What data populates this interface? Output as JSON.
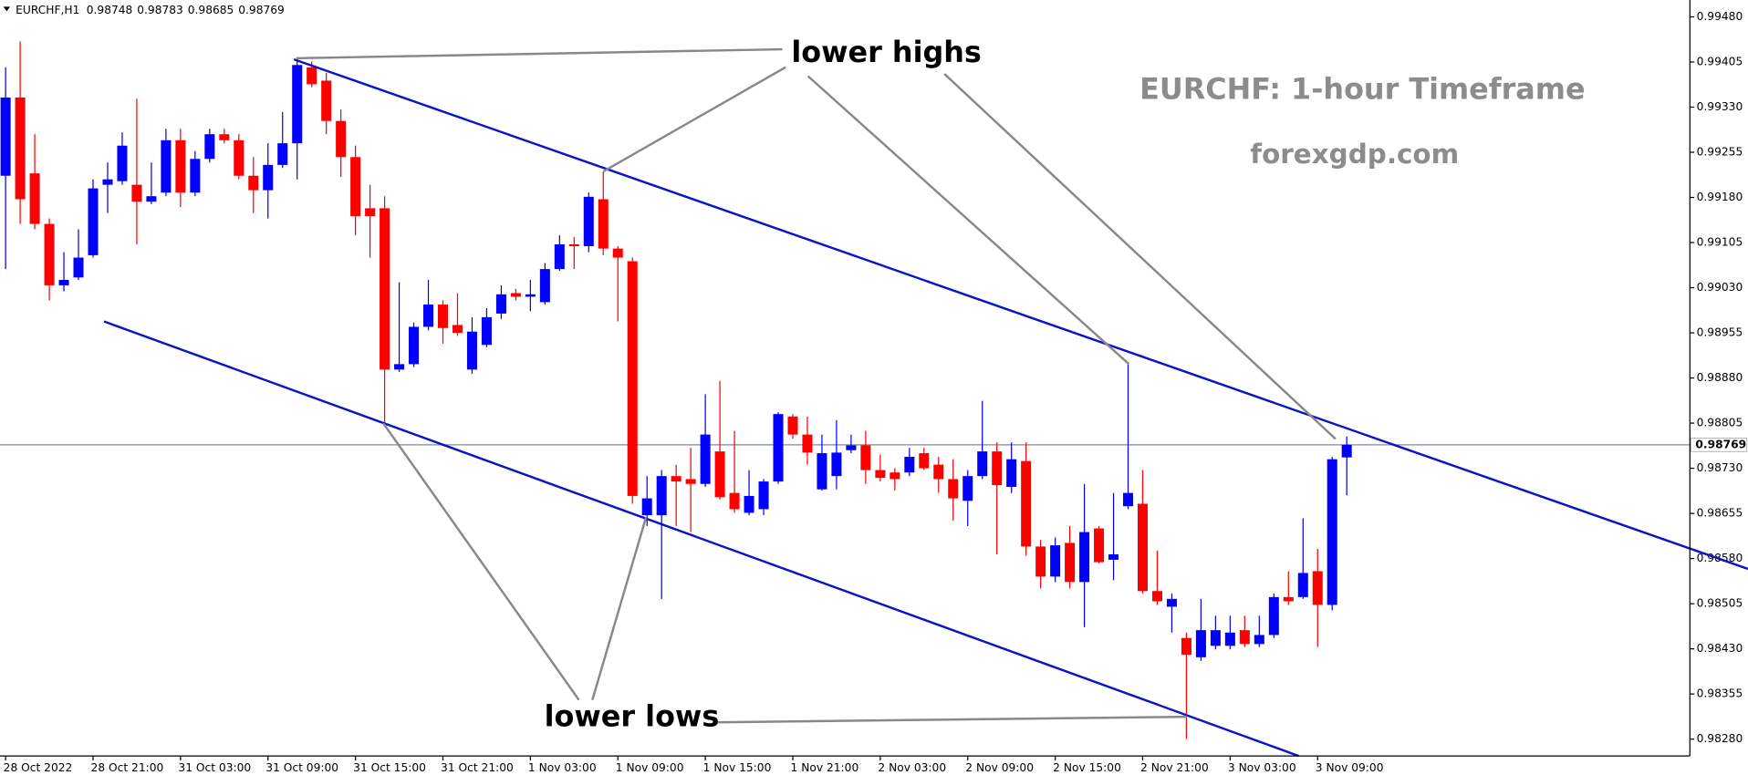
{
  "chart_data": {
    "type": "candlestick",
    "symbol": "EURCHF,H1",
    "title": "EURCHF: 1-hour Timeframe",
    "subtitle": "forexgdp.com",
    "annotations": [
      "lower highs",
      "lower lows"
    ],
    "up_color": "#0000ff",
    "down_color": "#ff0000",
    "categories": [
      "28 Oct 2022",
      null,
      null,
      null,
      null,
      null,
      "28 Oct 21:00",
      null,
      null,
      null,
      null,
      null,
      "31 Oct 03:00",
      null,
      null,
      null,
      null,
      null,
      "31 Oct 09:00",
      null,
      null,
      null,
      null,
      null,
      "31 Oct 15:00",
      null,
      null,
      null,
      null,
      null,
      "31 Oct 21:00",
      null,
      null,
      null,
      null,
      null,
      "1 Nov 03:00",
      null,
      null,
      null,
      null,
      null,
      "1 Nov 09:00",
      null,
      null,
      null,
      null,
      null,
      "1 Nov 15:00",
      null,
      null,
      null,
      null,
      null,
      "1 Nov 21:00",
      null,
      null,
      null,
      null,
      null,
      "2 Nov 03:00",
      null,
      null,
      null,
      null,
      null,
      "2 Nov 09:00",
      null,
      null,
      null,
      null,
      null,
      "2 Nov 15:00",
      null,
      null,
      null,
      null,
      null,
      "2 Nov 21:00",
      null,
      null,
      null,
      null,
      null,
      "3 Nov 03:00",
      null,
      null,
      null,
      null,
      null,
      "3 Nov 09:00",
      null,
      null
    ],
    "open": [
      0.99216,
      0.99346,
      0.9922,
      0.99136,
      0.99034,
      0.99047,
      0.99084,
      0.99201,
      0.99207,
      0.99201,
      0.99173,
      0.99188,
      0.99275,
      0.99188,
      0.99244,
      0.99285,
      0.99275,
      0.99216,
      0.99192,
      0.99234,
      0.9927,
      0.99396,
      0.99374,
      0.99307,
      0.99247,
      0.99162,
      0.99162,
      0.98894,
      0.98903,
      0.98965,
      0.99002,
      0.98968,
      0.98894,
      0.98935,
      0.98987,
      0.99021,
      0.99015,
      0.99006,
      0.99061,
      0.99102,
      0.99099,
      0.99177,
      0.99095,
      0.99074,
      0.98652,
      0.98652,
      0.98717,
      0.98712,
      0.98704,
      0.98758,
      0.98689,
      0.98656,
      0.98662,
      0.98708,
      0.98816,
      0.98786,
      0.98695,
      0.98717,
      0.9876,
      0.98768,
      0.98727,
      0.98723,
      0.98723,
      0.98755,
      0.98736,
      0.98712,
      0.98676,
      0.98717,
      0.98758,
      0.98699,
      0.98742,
      0.986,
      0.9855,
      0.98606,
      0.98541,
      0.9863,
      0.98578,
      0.98667,
      0.98671,
      0.98526,
      0.985,
      0.98448,
      0.98416,
      0.98435,
      0.98435,
      0.98461,
      0.98438,
      0.98453,
      0.98516,
      0.98516,
      0.98559,
      0.98503,
      0.98748
    ],
    "high": [
      0.99396,
      0.99439,
      0.99285,
      0.99145,
      0.99089,
      0.99127,
      0.9921,
      0.99238,
      0.99288,
      0.99344,
      0.99238,
      0.99294,
      0.99294,
      0.99257,
      0.99294,
      0.99294,
      0.99285,
      0.99247,
      0.9927,
      0.99322,
      0.99409,
      0.99406,
      0.99387,
      0.99326,
      0.99266,
      0.99201,
      0.99182,
      0.99039,
      0.98972,
      0.99043,
      0.99009,
      0.99021,
      0.98981,
      0.98996,
      0.99034,
      0.99028,
      0.99043,
      0.99071,
      0.99117,
      0.99114,
      0.99188,
      0.99223,
      0.99099,
      0.9908,
      0.98717,
      0.98727,
      0.98736,
      0.98764,
      0.98853,
      0.98875,
      0.98792,
      0.98727,
      0.98712,
      0.98823,
      0.9882,
      0.98816,
      0.98786,
      0.9881,
      0.98786,
      0.98792,
      0.98753,
      0.9873,
      0.98764,
      0.98764,
      0.98749,
      0.98745,
      0.98727,
      0.98842,
      0.98773,
      0.98773,
      0.98773,
      0.98611,
      0.98615,
      0.98634,
      0.98704,
      0.98634,
      0.98689,
      0.98903,
      0.98727,
      0.98593,
      0.98522,
      0.98457,
      0.98513,
      0.98485,
      0.98485,
      0.98485,
      0.98485,
      0.98522,
      0.98559,
      0.98647,
      0.98596,
      0.98749,
      0.98783
    ],
    "low": [
      0.99061,
      0.99136,
      0.99127,
      0.99009,
      0.99024,
      0.99043,
      0.9908,
      0.99154,
      0.99201,
      0.99102,
      0.99169,
      0.99182,
      0.99164,
      0.99182,
      0.99238,
      0.9927,
      0.9921,
      0.99154,
      0.99145,
      0.99229,
      0.9921,
      0.99363,
      0.99285,
      0.99214,
      0.99117,
      0.9908,
      0.98805,
      0.9889,
      0.98898,
      0.98959,
      0.98937,
      0.9895,
      0.98887,
      0.98931,
      0.98978,
      0.99009,
      0.98991,
      0.99002,
      0.99058,
      0.99061,
      0.99089,
      0.99084,
      0.98974,
      0.98671,
      0.98634,
      0.98513,
      0.98634,
      0.98624,
      0.98699,
      0.98678,
      0.98656,
      0.98652,
      0.98652,
      0.98704,
      0.98779,
      0.98736,
      0.98693,
      0.98695,
      0.98755,
      0.98704,
      0.98708,
      0.98693,
      0.98717,
      0.98727,
      0.98689,
      0.98643,
      0.98634,
      0.98712,
      0.98587,
      0.98689,
      0.98585,
      0.98531,
      0.98541,
      0.98531,
      0.98466,
      0.98572,
      0.98544,
      0.98662,
      0.98522,
      0.98503,
      0.98457,
      0.9828,
      0.9841,
      0.98429,
      0.98429,
      0.98433,
      0.98433,
      0.98448,
      0.98503,
      0.98513,
      0.98433,
      0.98494,
      0.98685
    ],
    "close": [
      0.99346,
      0.99177,
      0.99136,
      0.99034,
      0.99043,
      0.9908,
      0.99195,
      0.9921,
      0.99266,
      0.99173,
      0.99182,
      0.99275,
      0.99188,
      0.99244,
      0.99285,
      0.99275,
      0.99216,
      0.99192,
      0.99234,
      0.9927,
      0.994,
      0.99368,
      0.99307,
      0.99247,
      0.99149,
      0.99149,
      0.98894,
      0.98903,
      0.98965,
      0.99002,
      0.98963,
      0.98955,
      0.98957,
      0.98981,
      0.99019,
      0.99015,
      0.99019,
      0.99061,
      0.99102,
      0.99099,
      0.99181,
      0.99095,
      0.9908,
      0.98684,
      0.9868,
      0.98717,
      0.98708,
      0.98704,
      0.98786,
      0.98682,
      0.98662,
      0.98684,
      0.98708,
      0.9882,
      0.98786,
      0.98756,
      0.98755,
      0.98756,
      0.98768,
      0.98727,
      0.98714,
      0.98712,
      0.98749,
      0.9873,
      0.98712,
      0.9868,
      0.98717,
      0.98758,
      0.98702,
      0.98745,
      0.986,
      0.9855,
      0.98602,
      0.98541,
      0.98624,
      0.98574,
      0.98587,
      0.98689,
      0.98526,
      0.98509,
      0.98513,
      0.9842,
      0.98461,
      0.98461,
      0.98457,
      0.98438,
      0.98453,
      0.98516,
      0.98509,
      0.98556,
      0.98503,
      0.98745,
      0.98769
    ],
    "ylim": [
      0.98252,
      0.99508
    ],
    "yticks": [
      {
        "value": 0.9948,
        "label": "0.99480"
      },
      0.99405,
      {
        "value": 0.9933,
        "label": "0.99330"
      },
      0.99255,
      {
        "value": 0.9918,
        "label": "0.99180"
      },
      0.99105,
      {
        "value": 0.9903,
        "label": "0.99030"
      },
      0.98955,
      {
        "value": 0.9888,
        "label": "0.98880"
      },
      0.98805,
      {
        "value": 0.9873,
        "label": "0.98730"
      },
      0.98655,
      {
        "value": 0.9858,
        "label": "0.98580"
      },
      0.98505,
      {
        "value": 0.9843,
        "label": "0.98430"
      },
      0.98355,
      {
        "value": 0.9828,
        "label": "0.98280"
      }
    ]
  }
}
